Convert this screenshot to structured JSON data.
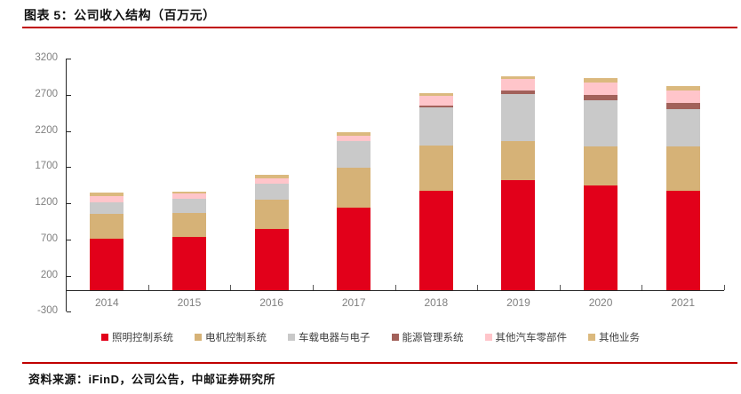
{
  "header": {
    "title": "图表 5：公司收入结构（百万元）"
  },
  "source": {
    "text": "资料来源：iFinD，公司公告，中邮证券研究所"
  },
  "style": {
    "accent_rule_color": "#c00000",
    "axis_color": "#262626",
    "tick_label_color": "#7f7f7f",
    "legend_text_color": "#404040",
    "background": "#ffffff"
  },
  "chart_data": {
    "type": "bar",
    "stacked": true,
    "title": "图表 5：公司收入结构（百万元）",
    "unit": "百万元",
    "categories": [
      "2014",
      "2015",
      "2016",
      "2017",
      "2018",
      "2019",
      "2020",
      "2021"
    ],
    "series": [
      {
        "name": "照明控制系统",
        "color": "#e2001a",
        "values": [
          710,
          737,
          848,
          1135,
          1375,
          1525,
          1445,
          1375
        ]
      },
      {
        "name": "电机控制系统",
        "color": "#d6b277",
        "values": [
          347,
          330,
          403,
          555,
          625,
          535,
          545,
          615
        ]
      },
      {
        "name": "车载电器与电子",
        "color": "#c9c9c9",
        "values": [
          153,
          196,
          225,
          372,
          530,
          650,
          635,
          515
        ]
      },
      {
        "name": "能源管理系统",
        "color": "#a2615a",
        "values": [
          0,
          0,
          0,
          0,
          22,
          48,
          75,
          80
        ]
      },
      {
        "name": "其他汽车零部件",
        "color": "#ffc5ca",
        "values": [
          95,
          70,
          70,
          70,
          130,
          155,
          175,
          175
        ]
      },
      {
        "name": "其他业务",
        "color": "#dbb97e",
        "values": [
          40,
          30,
          50,
          45,
          40,
          40,
          50,
          60
        ]
      }
    ],
    "totals": [
      1345,
      1363,
      1596,
      2177,
      2722,
      2953,
      2925,
      2820
    ],
    "ylim": [
      -300,
      3200
    ],
    "yticks": [
      3200,
      2700,
      2200,
      1700,
      1200,
      700,
      200,
      -300
    ],
    "grid": false,
    "legend_position": "bottom"
  }
}
